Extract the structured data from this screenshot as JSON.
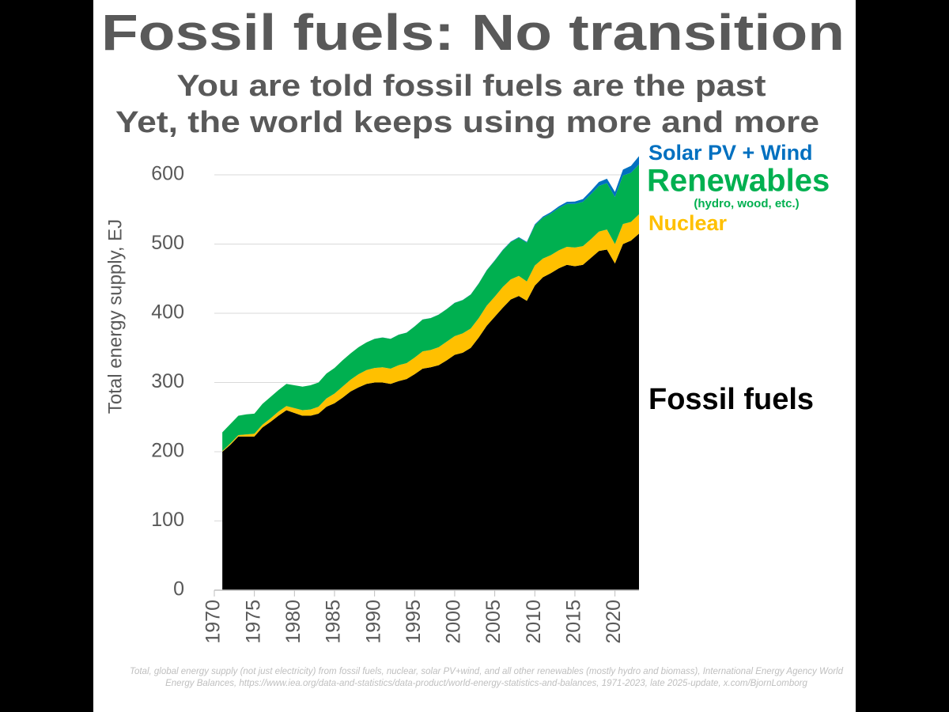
{
  "chart_data": {
    "type": "stacked_area",
    "title": "Fossil fuels: No transition",
    "subtitle": [
      "You are told fossil fuels are the past",
      "Yet, the world keeps using more and more"
    ],
    "y_label": "Total energy supply, EJ",
    "source": "Total, global energy supply (not just electricity) from fossil fuels, nuclear, solar PV+wind, and all other renewables (mostly hydro and biomass), International Energy Agency World Energy Balances, https://www.iea.org/data-and-statistics/data-product/world-energy-statistics-and-balances, 1971-2023, late 2025-update, x.com/BjornLomborg",
    "x": [
      1971,
      1972,
      1973,
      1974,
      1975,
      1976,
      1977,
      1978,
      1979,
      1980,
      1981,
      1982,
      1983,
      1984,
      1985,
      1986,
      1987,
      1988,
      1989,
      1990,
      1991,
      1992,
      1993,
      1994,
      1995,
      1996,
      1997,
      1998,
      1999,
      2000,
      2001,
      2002,
      2003,
      2004,
      2005,
      2006,
      2007,
      2008,
      2009,
      2010,
      2011,
      2012,
      2013,
      2014,
      2015,
      2016,
      2017,
      2018,
      2019,
      2020,
      2021,
      2022,
      2023
    ],
    "xlim": [
      1970,
      2023
    ],
    "xticks": [
      1970,
      1975,
      1980,
      1985,
      1990,
      1995,
      2000,
      2005,
      2010,
      2015,
      2020
    ],
    "ylim": [
      0,
      630
    ],
    "yticks": [
      0,
      100,
      200,
      300,
      400,
      500,
      600
    ],
    "grid": true,
    "series": [
      {
        "name": "Fossil fuels",
        "color": "#000000",
        "values": [
          200,
          210,
          222,
          222,
          222,
          235,
          243,
          252,
          260,
          256,
          252,
          252,
          255,
          265,
          270,
          278,
          287,
          293,
          298,
          300,
          300,
          298,
          302,
          305,
          312,
          320,
          322,
          325,
          332,
          340,
          343,
          350,
          365,
          382,
          395,
          408,
          420,
          425,
          418,
          440,
          452,
          458,
          465,
          470,
          468,
          470,
          480,
          490,
          492,
          472,
          500,
          505,
          515
        ]
      },
      {
        "name": "Nuclear",
        "color": "#ffc000",
        "values": [
          1,
          2,
          2,
          3,
          4,
          4,
          5,
          6,
          6,
          7,
          8,
          9,
          10,
          12,
          14,
          16,
          17,
          19,
          20,
          21,
          22,
          22,
          23,
          23,
          24,
          25,
          25,
          26,
          27,
          27,
          28,
          28,
          28,
          29,
          29,
          30,
          29,
          29,
          28,
          29,
          27,
          26,
          26,
          26,
          27,
          27,
          27,
          28,
          29,
          28,
          29,
          27,
          28
        ]
      },
      {
        "name": "Renewables",
        "note": "(hydro, wood, etc.)",
        "color": "#00b050",
        "values": [
          27,
          28,
          28,
          29,
          29,
          30,
          31,
          31,
          32,
          33,
          34,
          35,
          35,
          36,
          37,
          38,
          38,
          39,
          40,
          42,
          43,
          43,
          44,
          44,
          45,
          46,
          46,
          47,
          47,
          48,
          48,
          49,
          50,
          51,
          52,
          53,
          54,
          55,
          56,
          58,
          59,
          60,
          61,
          62,
          63,
          64,
          65,
          66,
          67,
          68,
          70,
          71,
          72
        ]
      },
      {
        "name": "Solar PV + Wind",
        "color": "#0070c0",
        "values": [
          0,
          0,
          0,
          0,
          0,
          0,
          0,
          0,
          0,
          0,
          0,
          0,
          0,
          0,
          0,
          0,
          0,
          0,
          0,
          0.1,
          0.1,
          0.1,
          0.1,
          0.1,
          0.1,
          0.1,
          0.1,
          0.1,
          0.1,
          0.2,
          0.2,
          0.3,
          0.3,
          0.4,
          0.5,
          0.6,
          0.7,
          0.9,
          1.1,
          1.4,
          1.7,
          2.1,
          2.5,
          2.9,
          3.4,
          4,
          4.8,
          5.6,
          6.4,
          7.3,
          8.5,
          10,
          12
        ]
      }
    ]
  }
}
